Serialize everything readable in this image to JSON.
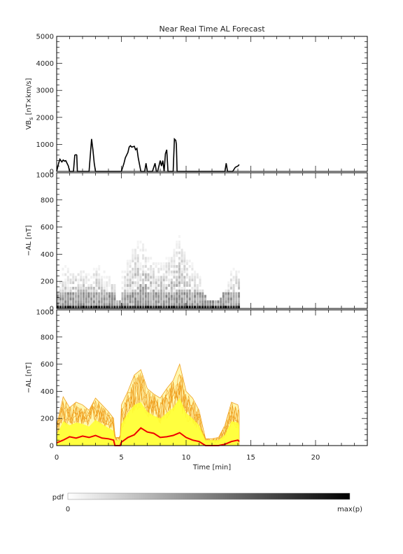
{
  "chart_data": {
    "title": "Near Real Time AL Forecast",
    "x_axis": {
      "label": "Time [min]",
      "range": [
        0,
        24
      ],
      "ticks": [
        0,
        5,
        10,
        15,
        20
      ],
      "tick_labels": [
        "0",
        "5",
        "10",
        "15",
        "20"
      ]
    },
    "panels": [
      {
        "type": "line",
        "ylabel_main": "VB",
        "ylabel_sub": "s",
        "ylabel_rest": " [nT×km/s]",
        "ylim": [
          0,
          5000
        ],
        "ticks": [
          0,
          1000,
          2000,
          3000,
          4000,
          5000
        ],
        "tick_labels": [
          "0",
          "1000",
          "2000",
          "3000",
          "4000",
          "5000"
        ],
        "series": [
          {
            "color": "#000000",
            "x": [
              0,
              0.15,
              0.25,
              0.4,
              0.5,
              0.6,
              0.7,
              0.8,
              0.9,
              1.0,
              1.1,
              1.2,
              1.3,
              1.4,
              1.5,
              1.55,
              1.6,
              1.7,
              2.0,
              2.5,
              2.6,
              2.7,
              2.8,
              2.9,
              3.0,
              3.2,
              4.0,
              4.5,
              4.9,
              5.0,
              5.2,
              5.3,
              5.5,
              5.6,
              5.7,
              5.8,
              6.0,
              6.1,
              6.2,
              6.3,
              6.5,
              6.6,
              6.8,
              6.9,
              7.0,
              7.2,
              7.4,
              7.6,
              7.7,
              7.8,
              8.0,
              8.1,
              8.2,
              8.3,
              8.4,
              8.5,
              8.6,
              8.7,
              8.8,
              9.0,
              9.1,
              9.2,
              9.25,
              9.3,
              9.4,
              10.0,
              11.0,
              12.0,
              12.9,
              13.0,
              13.1,
              13.2,
              13.4,
              13.6,
              13.8,
              14.0,
              14.1
            ],
            "y": [
              0,
              300,
              450,
              350,
              420,
              380,
              400,
              300,
              200,
              0,
              0,
              0,
              0,
              600,
              620,
              600,
              0,
              0,
              0,
              0,
              600,
              1200,
              800,
              300,
              0,
              0,
              0,
              0,
              0,
              0,
              300,
              500,
              700,
              900,
              950,
              900,
              930,
              800,
              850,
              500,
              0,
              0,
              0,
              300,
              0,
              0,
              0,
              300,
              0,
              0,
              400,
              200,
              400,
              0,
              650,
              800,
              0,
              0,
              0,
              0,
              1200,
              1150,
              1000,
              0,
              0,
              0,
              0,
              0,
              0,
              0,
              300,
              0,
              0,
              0,
              150,
              200,
              250
            ]
          }
        ]
      },
      {
        "type": "heatmap",
        "ylabel_main": "−AL [nT]",
        "ylim": [
          0,
          1000
        ],
        "ticks": [
          0,
          200,
          400,
          600,
          800,
          1000
        ],
        "tick_labels": [
          "0",
          "200",
          "400",
          "600",
          "800",
          "1000"
        ],
        "time_range": [
          0,
          14.1
        ],
        "colormap": [
          "#ffffff",
          "#000000"
        ]
      },
      {
        "type": "area",
        "ylabel_main": "−AL [nT]",
        "ylim": [
          0,
          1000
        ],
        "ticks": [
          0,
          200,
          400,
          600,
          800,
          1000
        ],
        "tick_labels": [
          "0",
          "200",
          "400",
          "600",
          "800",
          "1000"
        ],
        "colors": {
          "range_outline": "#f0a020",
          "inner_fill": "#ffff33",
          "median": "#ee0000"
        },
        "median": {
          "x": [
            0,
            0.5,
            1,
            1.5,
            2,
            2.5,
            3,
            3.5,
            4,
            4.4,
            4.5,
            4.9,
            5,
            5.5,
            6,
            6.5,
            7,
            7.5,
            8,
            8.5,
            9,
            9.5,
            10,
            10.5,
            11,
            11.5,
            12,
            12.5,
            13,
            13.5,
            14,
            14.1
          ],
          "y": [
            20,
            40,
            65,
            55,
            70,
            60,
            75,
            55,
            50,
            40,
            0,
            0,
            25,
            60,
            80,
            130,
            100,
            90,
            60,
            65,
            75,
            95,
            60,
            40,
            30,
            0,
            0,
            0,
            10,
            30,
            40,
            30
          ]
        },
        "upper": {
          "x": [
            0,
            0.5,
            1,
            1.5,
            2,
            2.5,
            3,
            3.5,
            4,
            4.4,
            4.5,
            4.9,
            5,
            5.5,
            6,
            6.5,
            7,
            7.5,
            8,
            8.5,
            9,
            9.5,
            10,
            10.5,
            11,
            11.5,
            12,
            12.5,
            13,
            13.5,
            14,
            14.1
          ],
          "y": [
            150,
            360,
            280,
            320,
            300,
            260,
            350,
            300,
            250,
            200,
            60,
            60,
            300,
            400,
            520,
            560,
            420,
            380,
            350,
            420,
            480,
            600,
            400,
            350,
            260,
            50,
            50,
            60,
            150,
            320,
            300,
            250
          ]
        },
        "inner": {
          "x": [
            0,
            0.5,
            1,
            1.5,
            2,
            2.5,
            3,
            3.5,
            4,
            4.4,
            4.5,
            4.9,
            5,
            5.5,
            6,
            6.5,
            7,
            7.5,
            8,
            8.5,
            9,
            9.5,
            10,
            10.5,
            11,
            11.5,
            12,
            12.5,
            13,
            13.5,
            14,
            14.1
          ],
          "y": [
            80,
            180,
            150,
            170,
            160,
            140,
            190,
            160,
            130,
            110,
            40,
            40,
            160,
            240,
            300,
            320,
            250,
            220,
            200,
            240,
            280,
            350,
            240,
            200,
            150,
            40,
            40,
            40,
            80,
            180,
            170,
            150
          ]
        }
      }
    ],
    "colorbar": {
      "label": "pdf",
      "min_label": "0",
      "max_label": "max(p)",
      "colors": [
        "#ffffff",
        "#000000"
      ]
    }
  }
}
